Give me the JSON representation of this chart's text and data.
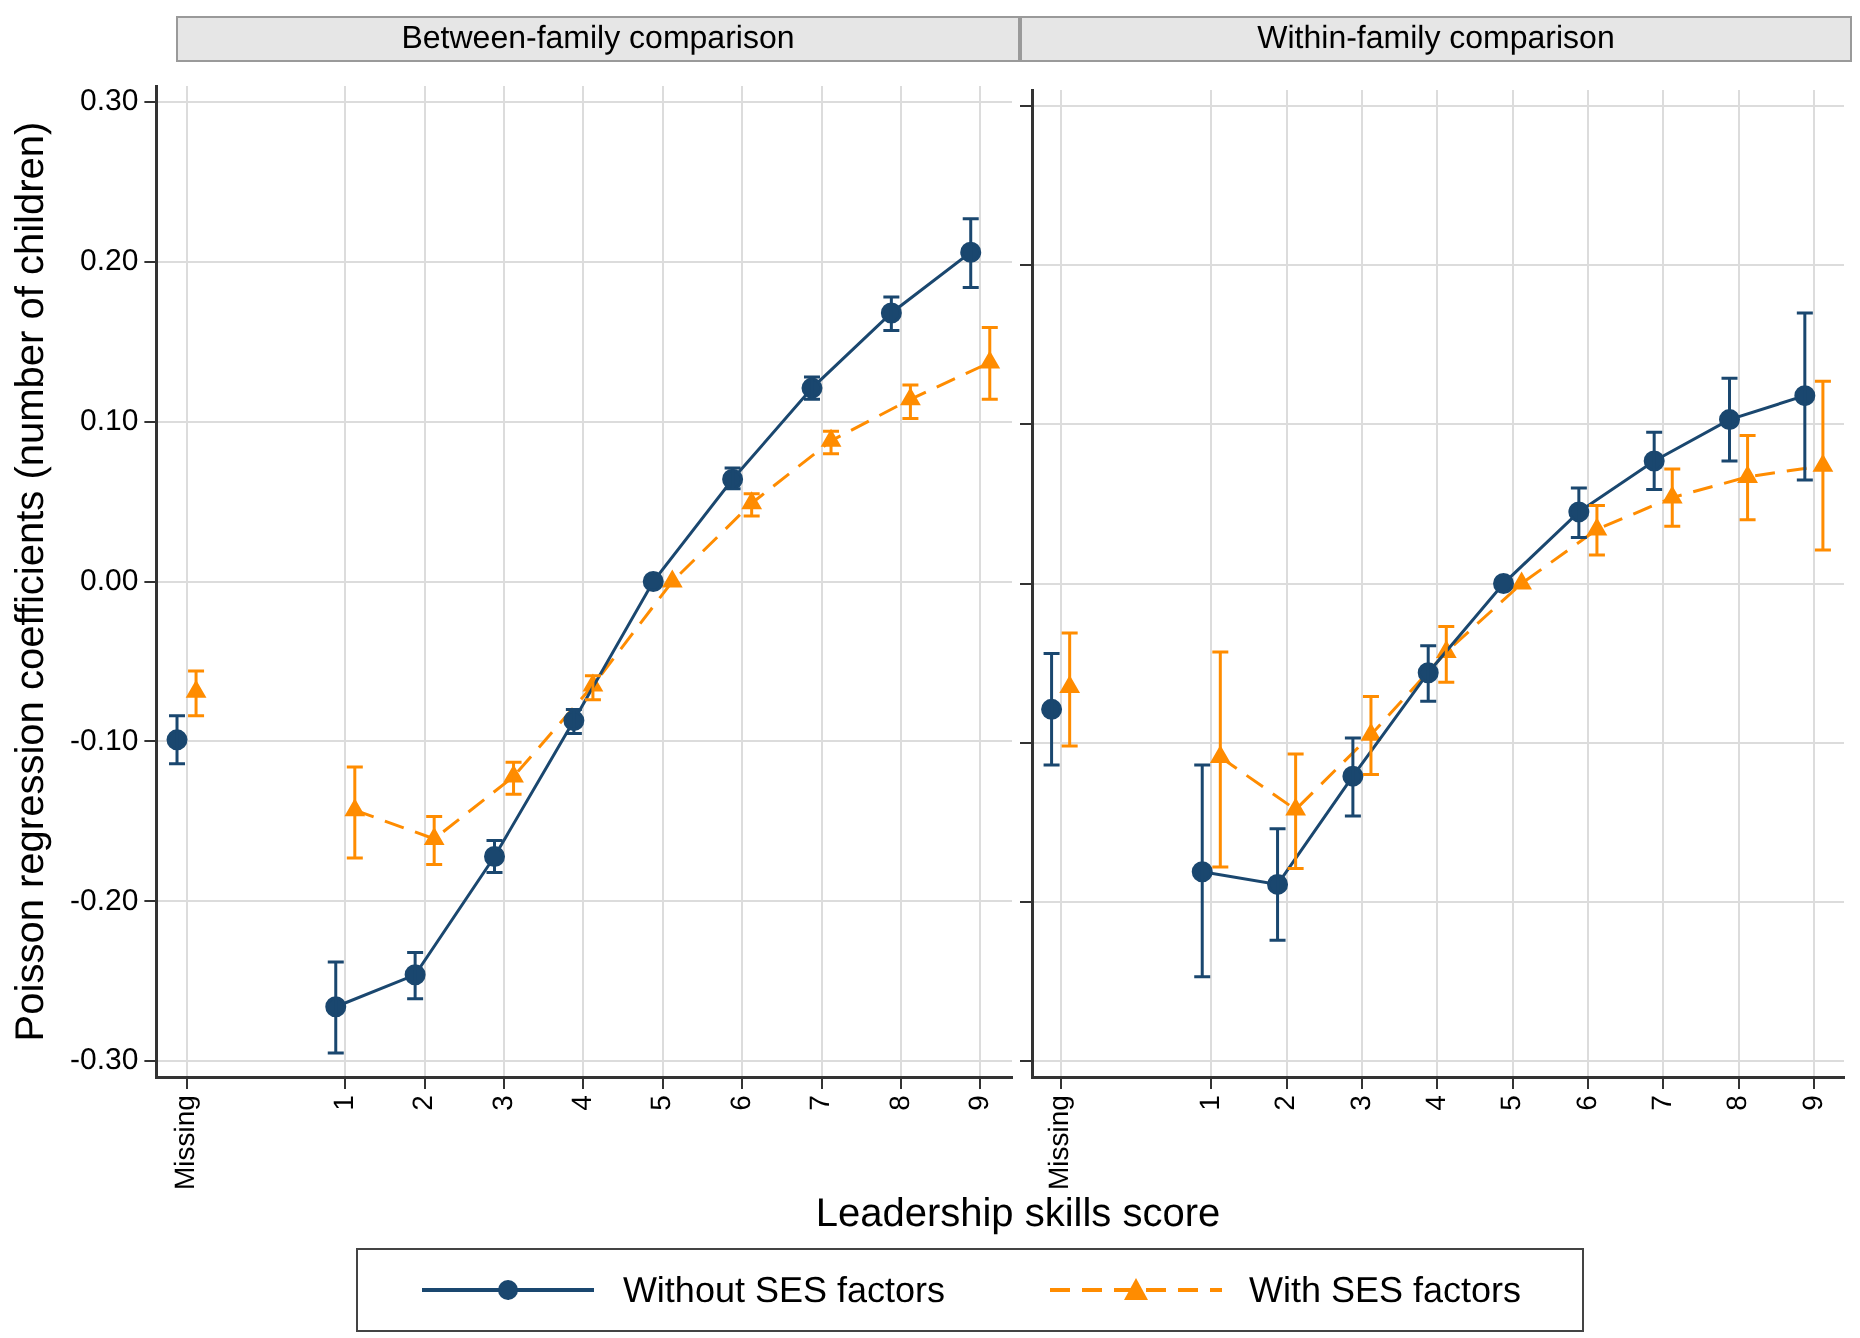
{
  "chart_data": [
    {
      "type": "line",
      "title": "Between-family comparison",
      "ylabel": "Poisson regression coefficients (number of children)",
      "xlabel": "Leadership skills score",
      "categories": [
        "Missing",
        null,
        "1",
        "2",
        "3",
        "4",
        "5",
        "6",
        "7",
        "8",
        "9"
      ],
      "ylim": [
        -0.31,
        0.31
      ],
      "yticks": [
        {
          "value": -0.3,
          "label": "-0.30"
        },
        {
          "value": -0.2,
          "label": "-0.20"
        },
        {
          "value": -0.1,
          "label": "-0.10"
        },
        {
          "value": 0,
          "label": "0.00"
        },
        {
          "value": 0.1,
          "label": "0.10"
        },
        {
          "value": 0.2,
          "label": "0.20"
        },
        {
          "value": 0.3,
          "label": "0.30"
        }
      ],
      "grid": true,
      "legend": "bottom",
      "series": [
        {
          "name": "Without SES factors",
          "color": "#1a476f",
          "marker": "circle",
          "line_style": "solid",
          "values": [
            -0.099,
            null,
            -0.266,
            -0.246,
            -0.172,
            -0.087,
            0,
            0.064,
            0.121,
            0.168,
            0.206
          ],
          "errors": [
            [
              -0.114,
              -0.084
            ],
            null,
            [
              -0.295,
              -0.238
            ],
            [
              -0.261,
              -0.232
            ],
            [
              -0.182,
              -0.162
            ],
            [
              -0.095,
              -0.08
            ],
            null,
            [
              0.058,
              0.071
            ],
            [
              0.114,
              0.128
            ],
            [
              0.157,
              0.178
            ],
            [
              0.184,
              0.227
            ]
          ]
        },
        {
          "name": "With SES factors",
          "color": "#ff8c00",
          "marker": "triangle",
          "line_style": "dashed",
          "values": [
            -0.069,
            null,
            -0.143,
            -0.161,
            -0.122,
            -0.065,
            0,
            0.049,
            0.088,
            0.114,
            0.137
          ],
          "errors": [
            [
              -0.084,
              -0.056
            ],
            null,
            [
              -0.173,
              -0.116
            ],
            [
              -0.177,
              -0.147
            ],
            [
              -0.133,
              -0.113
            ],
            [
              -0.074,
              -0.059
            ],
            null,
            [
              0.041,
              0.055
            ],
            [
              0.08,
              0.094
            ],
            [
              0.102,
              0.123
            ],
            [
              0.114,
              0.159
            ]
          ]
        }
      ]
    },
    {
      "type": "line",
      "title": "Within-family comparison",
      "categories": [
        "Missing",
        null,
        "1",
        "2",
        "3",
        "4",
        "5",
        "6",
        "7",
        "8",
        "9"
      ],
      "ylim": [
        -0.31,
        0.31
      ],
      "yticks": [
        {
          "value": -0.3,
          "label": null
        },
        {
          "value": -0.2,
          "label": null
        },
        {
          "value": -0.1,
          "label": null
        },
        {
          "value": 0,
          "label": null
        },
        {
          "value": 0.1,
          "label": null
        },
        {
          "value": 0.2,
          "label": null
        },
        {
          "value": 0.3,
          "label": null
        }
      ],
      "grid": true,
      "tick_labels": "x",
      "series": [
        {
          "color": "#1a476f",
          "marker": "circle",
          "line_style": "solid",
          "values": [
            -0.079,
            null,
            -0.181,
            -0.189,
            -0.121,
            -0.056,
            0,
            0.045,
            0.077,
            0.103,
            0.118
          ],
          "errors": [
            [
              -0.114,
              -0.044
            ],
            null,
            [
              -0.247,
              -0.114
            ],
            [
              -0.224,
              -0.154
            ],
            [
              -0.146,
              -0.097
            ],
            [
              -0.074,
              -0.039
            ],
            null,
            [
              0.029,
              0.06
            ],
            [
              0.059,
              0.095
            ],
            [
              0.077,
              0.129
            ],
            [
              0.065,
              0.17
            ]
          ]
        },
        {
          "color": "#ff8c00",
          "marker": "triangle",
          "line_style": "dashed",
          "values": [
            -0.065,
            null,
            -0.109,
            -0.142,
            -0.095,
            -0.043,
            0,
            0.034,
            0.054,
            0.067,
            0.074
          ],
          "errors": [
            [
              -0.102,
              -0.031
            ],
            null,
            [
              -0.178,
              -0.043
            ],
            [
              -0.179,
              -0.107
            ],
            [
              -0.12,
              -0.071
            ],
            [
              -0.062,
              -0.027
            ],
            null,
            [
              0.018,
              0.049
            ],
            [
              0.036,
              0.072
            ],
            [
              0.04,
              0.093
            ],
            [
              0.021,
              0.127
            ]
          ]
        }
      ]
    }
  ]
}
